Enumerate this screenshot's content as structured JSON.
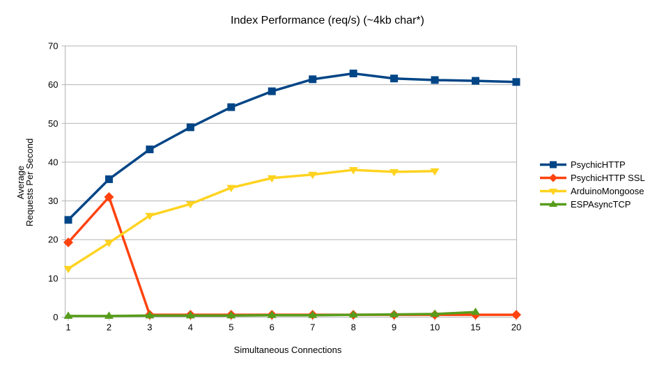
{
  "title": "Index Performance (req/s) (~4kb char*)",
  "chart_data": {
    "type": "line",
    "title": "Index Performance (req/s) (~4kb char*)",
    "xlabel": "Simultaneous Connections",
    "ylabel": "Average\nRequests Per Second",
    "categories": [
      "1",
      "2",
      "3",
      "4",
      "5",
      "6",
      "7",
      "8",
      "9",
      "10",
      "15",
      "20"
    ],
    "ylim": [
      0,
      70
    ],
    "ytick_step": 10,
    "grid": true,
    "legend_position": "right",
    "series": [
      {
        "name": "PsychicHTTP",
        "color": "#004586",
        "marker": "square",
        "values": [
          25.1,
          35.6,
          43.3,
          49.0,
          54.2,
          58.3,
          61.4,
          62.9,
          61.6,
          61.2,
          61.0,
          60.7
        ]
      },
      {
        "name": "PsychicHTTP SSL",
        "color": "#FF420E",
        "marker": "diamond",
        "values": [
          19.3,
          31.0,
          0.6,
          0.6,
          0.6,
          0.6,
          0.6,
          0.6,
          0.6,
          0.6,
          0.6,
          0.6
        ]
      },
      {
        "name": "ArduinoMongoose",
        "color": "#FFD320",
        "marker": "triangle-down",
        "values": [
          12.5,
          19.2,
          26.2,
          29.2,
          33.4,
          35.9,
          36.8,
          38.0,
          37.5,
          37.7,
          null,
          null
        ]
      },
      {
        "name": "ESPAsyncTCP",
        "color": "#579D1C",
        "marker": "triangle-up",
        "values": [
          0.3,
          0.3,
          0.4,
          0.4,
          0.4,
          0.5,
          0.5,
          0.6,
          0.7,
          0.8,
          1.3,
          null
        ]
      }
    ],
    "colors": {
      "grid": "#B3B3B3",
      "axis": "#B3B3B3",
      "text": "#000000",
      "background": "#FFFFFF"
    }
  }
}
